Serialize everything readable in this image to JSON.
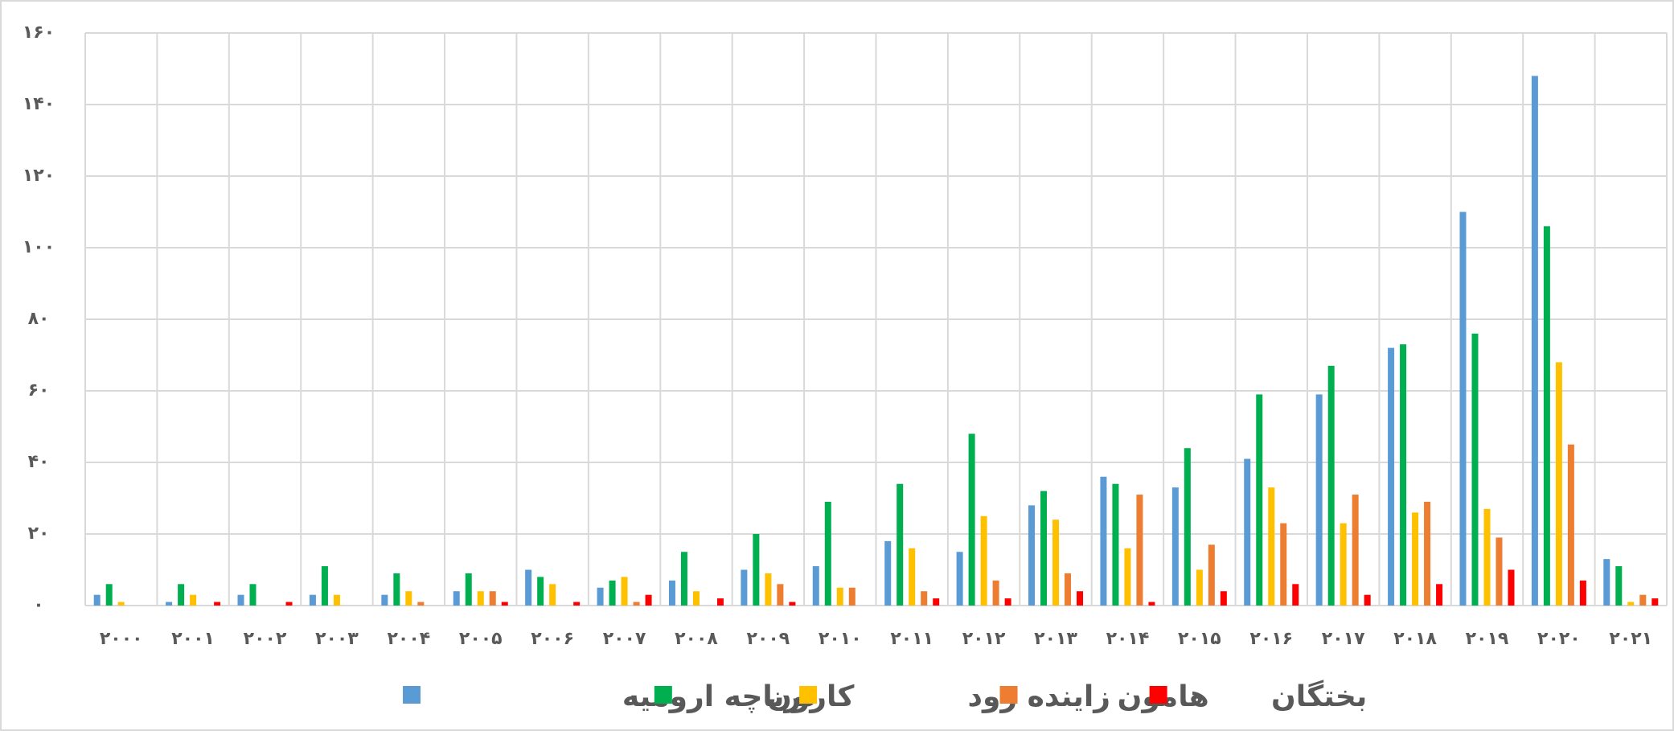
{
  "chart_data": {
    "type": "bar",
    "categories": [
      "۲۰۰۰",
      "۲۰۰۱",
      "۲۰۰۲",
      "۲۰۰۳",
      "۲۰۰۴",
      "۲۰۰۵",
      "۲۰۰۶",
      "۲۰۰۷",
      "۲۰۰۸",
      "۲۰۰۹",
      "۲۰۱۰",
      "۲۰۱۱",
      "۲۰۱۲",
      "۲۰۱۳",
      "۲۰۱۴",
      "۲۰۱۵",
      "۲۰۱۶",
      "۲۰۱۷",
      "۲۰۱۸",
      "۲۰۱۹",
      "۲۰۲۰",
      "۲۰۲۱"
    ],
    "series": [
      {
        "name": "دریاچه ارومیه",
        "color": "#5b9bd5",
        "values": [
          3,
          1,
          3,
          3,
          3,
          4,
          10,
          5,
          7,
          10,
          11,
          18,
          15,
          28,
          36,
          33,
          41,
          59,
          72,
          110,
          148,
          13
        ]
      },
      {
        "name": "کارون",
        "color": "#00b050",
        "values": [
          6,
          6,
          6,
          11,
          9,
          9,
          8,
          7,
          15,
          20,
          29,
          34,
          48,
          32,
          34,
          44,
          59,
          67,
          73,
          76,
          106,
          11
        ]
      },
      {
        "name": "زاینده رود",
        "color": "#ffc000",
        "values": [
          1,
          3,
          0,
          3,
          4,
          4,
          6,
          8,
          4,
          9,
          5,
          16,
          25,
          24,
          16,
          10,
          33,
          23,
          26,
          27,
          68,
          1
        ]
      },
      {
        "name": "هامون",
        "color": "#ed7d31",
        "values": [
          0,
          0,
          0,
          0,
          1,
          4,
          0,
          1,
          0,
          6,
          5,
          4,
          7,
          9,
          31,
          17,
          23,
          31,
          29,
          19,
          45,
          3
        ]
      },
      {
        "name": "بختگان",
        "color": "#ff0000",
        "values": [
          0,
          1,
          1,
          0,
          0,
          1,
          1,
          3,
          2,
          1,
          0,
          2,
          2,
          4,
          1,
          4,
          6,
          3,
          6,
          10,
          7,
          2
        ]
      }
    ],
    "ylim": [
      0,
      160
    ],
    "yticks": [
      {
        "value": 0,
        "label": "۰"
      },
      {
        "value": 20,
        "label": "۲۰"
      },
      {
        "value": 40,
        "label": "۴۰"
      },
      {
        "value": 60,
        "label": "۶۰"
      },
      {
        "value": 80,
        "label": "۸۰"
      },
      {
        "value": 100,
        "label": "۱۰۰"
      },
      {
        "value": 120,
        "label": "۱۲۰"
      },
      {
        "value": 140,
        "label": "۱۴۰"
      },
      {
        "value": 160,
        "label": "۱۶۰"
      }
    ],
    "grid": true
  }
}
